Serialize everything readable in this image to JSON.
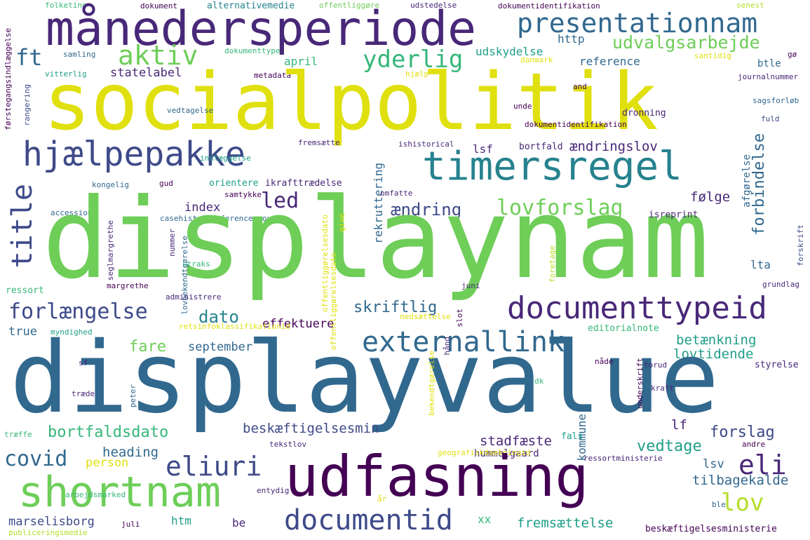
{
  "palette": {
    "purple": "#440154",
    "indigo": "#482878",
    "blue": "#3e4a89",
    "steel": "#31688e",
    "teal": "#26828e",
    "green": "#1f9e89",
    "emerald": "#35b779",
    "lime": "#6ece58",
    "chartreuse": "#b5de2b",
    "yellow": "#e0e00f"
  },
  "words": [
    {
      "text": "folketing",
      "color": "emerald"
    },
    {
      "text": "dokument",
      "color": "purple"
    },
    {
      "text": "alternativemedie",
      "color": "teal"
    },
    {
      "text": "offentliggøre",
      "color": "lime"
    },
    {
      "text": "udstedelse",
      "color": "indigo"
    },
    {
      "text": "dokumentidentifikation",
      "color": "purple"
    },
    {
      "text": "senest",
      "color": "chartreuse"
    },
    {
      "text": "månedersperiode",
      "color": "indigo"
    },
    {
      "text": "presentationnam",
      "color": "steel"
    },
    {
      "text": "dokumenttype",
      "color": "emerald"
    },
    {
      "text": "samling",
      "color": "steel"
    },
    {
      "text": "ft",
      "color": "steel"
    },
    {
      "text": "aktiv",
      "color": "lime"
    },
    {
      "text": "yderlig",
      "color": "emerald"
    },
    {
      "text": "udskydelse",
      "color": "green"
    },
    {
      "text": "http",
      "color": "steel"
    },
    {
      "text": "udvalgsarbejde",
      "color": "lime"
    },
    {
      "text": "danmark",
      "color": "yellow"
    },
    {
      "text": "santidig",
      "color": "yellow"
    },
    {
      "text": "gø",
      "color": "purple"
    },
    {
      "text": "april",
      "color": "emerald"
    },
    {
      "text": "reference",
      "color": "steel"
    },
    {
      "text": "btle",
      "color": "steel"
    },
    {
      "text": "statelabel",
      "color": "indigo"
    },
    {
      "text": "vitterlig",
      "color": "green"
    },
    {
      "text": "metadata",
      "color": "purple"
    },
    {
      "text": "hjælp",
      "color": "yellow"
    },
    {
      "text": "journalnummer",
      "color": "indigo"
    },
    {
      "text": "rangering",
      "color": "blue"
    },
    {
      "text": "socialpolitik",
      "color": "yellow"
    },
    {
      "text": "and",
      "color": "purple"
    },
    {
      "text": "sagsforløb",
      "color": "steel"
    },
    {
      "text": "vedtagelse",
      "color": "steel"
    },
    {
      "text": "unde",
      "color": "purple"
    },
    {
      "text": "dronning",
      "color": "indigo"
    },
    {
      "text": "førstegangsindlæggelse",
      "color": "purple"
    },
    {
      "text": "fremsætte",
      "color": "indigo"
    },
    {
      "text": "ishistorical",
      "color": "indigo"
    },
    {
      "text": "fuld",
      "color": "blue"
    },
    {
      "text": "hjælpepakke",
      "color": "blue"
    },
    {
      "text": "timersregel",
      "color": "teal"
    },
    {
      "text": "indlæggelse",
      "color": "green"
    },
    {
      "text": "bortfald",
      "color": "indigo"
    },
    {
      "text": "lsf",
      "color": "indigo"
    },
    {
      "text": "ændringslov",
      "color": "indigo"
    },
    {
      "text": "forbindelse",
      "color": "steel"
    },
    {
      "text": "kongelig",
      "color": "steel"
    },
    {
      "text": "gud",
      "color": "purple"
    },
    {
      "text": "orientere",
      "color": "green"
    },
    {
      "text": "ikrafttrædelse",
      "color": "indigo"
    },
    {
      "text": "rekruttering",
      "color": "steel"
    },
    {
      "text": "afgørelse",
      "color": "steel"
    },
    {
      "text": "samtykke",
      "color": "purple"
    },
    {
      "text": "omfatte",
      "color": "indigo"
    },
    {
      "text": "title",
      "color": "blue"
    },
    {
      "text": "led",
      "color": "indigo"
    },
    {
      "text": "følge",
      "color": "indigo"
    },
    {
      "text": "lovforslag",
      "color": "lime"
    },
    {
      "text": "index",
      "color": "indigo"
    },
    {
      "text": "ændring",
      "color": "blue"
    },
    {
      "text": "accession",
      "color": "steel"
    },
    {
      "text": "casehistoryreferencegroup",
      "color": "steel"
    },
    {
      "text": "displaynam",
      "color": "lime"
    },
    {
      "text": "isreprint",
      "color": "indigo"
    },
    {
      "text": "forskrift",
      "color": "blue"
    },
    {
      "text": "seglmargrethe",
      "color": "indigo"
    },
    {
      "text": "nummer",
      "color": "indigo"
    },
    {
      "text": "offentliggørelsesdato",
      "color": "yellow"
    },
    {
      "text": "give",
      "color": "yellow"
    },
    {
      "text": "lovbekendtgørelse",
      "color": "steel"
    },
    {
      "text": "foretage",
      "color": "chartreuse"
    },
    {
      "text": "straks",
      "color": "emerald"
    },
    {
      "text": "lta",
      "color": "steel"
    },
    {
      "text": "ressort",
      "color": "emerald"
    },
    {
      "text": "margrethe",
      "color": "purple"
    },
    {
      "text": "administrere",
      "color": "indigo"
    },
    {
      "text": "juni",
      "color": "indigo"
    },
    {
      "text": "grundlag",
      "color": "indigo"
    },
    {
      "text": "documenttypeid",
      "color": "indigo"
    },
    {
      "text": "forlængelse",
      "color": "blue"
    },
    {
      "text": "dato",
      "color": "teal"
    },
    {
      "text": "skriftlig",
      "color": "steel"
    },
    {
      "text": "true",
      "color": "steel"
    },
    {
      "text": "myndighed",
      "color": "green"
    },
    {
      "text": "effektuere",
      "color": "purple"
    },
    {
      "text": "retsinfoklassifikationid",
      "color": "yellow"
    },
    {
      "text": "nedsættelse",
      "color": "yellow"
    },
    {
      "text": "slot",
      "color": "purple"
    },
    {
      "text": "editorialnote",
      "color": "emerald"
    },
    {
      "text": "externallink",
      "color": "steel"
    },
    {
      "text": "fare",
      "color": "lime"
    },
    {
      "text": "september",
      "color": "steel"
    },
    {
      "text": "betænkning",
      "color": "green"
    },
    {
      "text": "lovtidende",
      "color": "green"
    },
    {
      "text": "styrelse",
      "color": "indigo"
    },
    {
      "text": "displayvalue",
      "color": "steel"
    },
    {
      "text": "hånd",
      "color": "indigo"
    },
    {
      "text": "bekendtgørelse",
      "color": "yellow"
    },
    {
      "text": "forud",
      "color": "indigo"
    },
    {
      "text": "nåde",
      "color": "purple"
    },
    {
      "text": "kraft",
      "color": "indigo"
    },
    {
      "text": "underskrift",
      "color": "purple"
    },
    {
      "text": "sf",
      "color": "indigo"
    },
    {
      "text": "dk",
      "color": "emerald"
    },
    {
      "text": "træde",
      "color": "indigo"
    },
    {
      "text": "peter",
      "color": "steel"
    },
    {
      "text": "bortfaldsdato",
      "color": "emerald"
    },
    {
      "text": "beskæftigelsesmin",
      "color": "blue"
    },
    {
      "text": "kommune",
      "color": "steel"
    },
    {
      "text": "lf",
      "color": "indigo"
    },
    {
      "text": "forslag",
      "color": "blue"
    },
    {
      "text": "træffe",
      "color": "emerald"
    },
    {
      "text": "tekstlov",
      "color": "indigo"
    },
    {
      "text": "fals",
      "color": "green"
    },
    {
      "text": "covid",
      "color": "steel"
    },
    {
      "text": "heading",
      "color": "steel"
    },
    {
      "text": "stadfæste",
      "color": "indigo"
    },
    {
      "text": "vedtage",
      "color": "green"
    },
    {
      "text": "andre",
      "color": "purple"
    },
    {
      "text": "eliuri",
      "color": "blue"
    },
    {
      "text": "person",
      "color": "yellow"
    },
    {
      "text": "hummelgaard",
      "color": "indigo"
    },
    {
      "text": "geografiskdaekningid",
      "color": "yellow"
    },
    {
      "text": "ressortministerie",
      "color": "indigo"
    },
    {
      "text": "eli",
      "color": "indigo"
    },
    {
      "text": "shortnam",
      "color": "lime"
    },
    {
      "text": "udfasning",
      "color": "purple"
    },
    {
      "text": "lsv",
      "color": "steel"
    },
    {
      "text": "arbejdsmarked",
      "color": "emerald"
    },
    {
      "text": "entydig",
      "color": "indigo"
    },
    {
      "text": "tilbagekalde",
      "color": "steel"
    },
    {
      "text": "lov",
      "color": "chartreuse"
    },
    {
      "text": "år",
      "color": "yellow"
    },
    {
      "text": "marselisborg",
      "color": "blue"
    },
    {
      "text": "htm",
      "color": "green"
    },
    {
      "text": "be",
      "color": "indigo"
    },
    {
      "text": "documentid",
      "color": "blue"
    },
    {
      "text": "xx",
      "color": "emerald"
    },
    {
      "text": "fremsættelse",
      "color": "green"
    },
    {
      "text": "ble",
      "color": "steel"
    },
    {
      "text": "juli",
      "color": "purple"
    },
    {
      "text": "publiceringsmedie",
      "color": "chartreuse"
    },
    {
      "text": "beskæftigelsesministerie",
      "color": "purple"
    }
  ]
}
